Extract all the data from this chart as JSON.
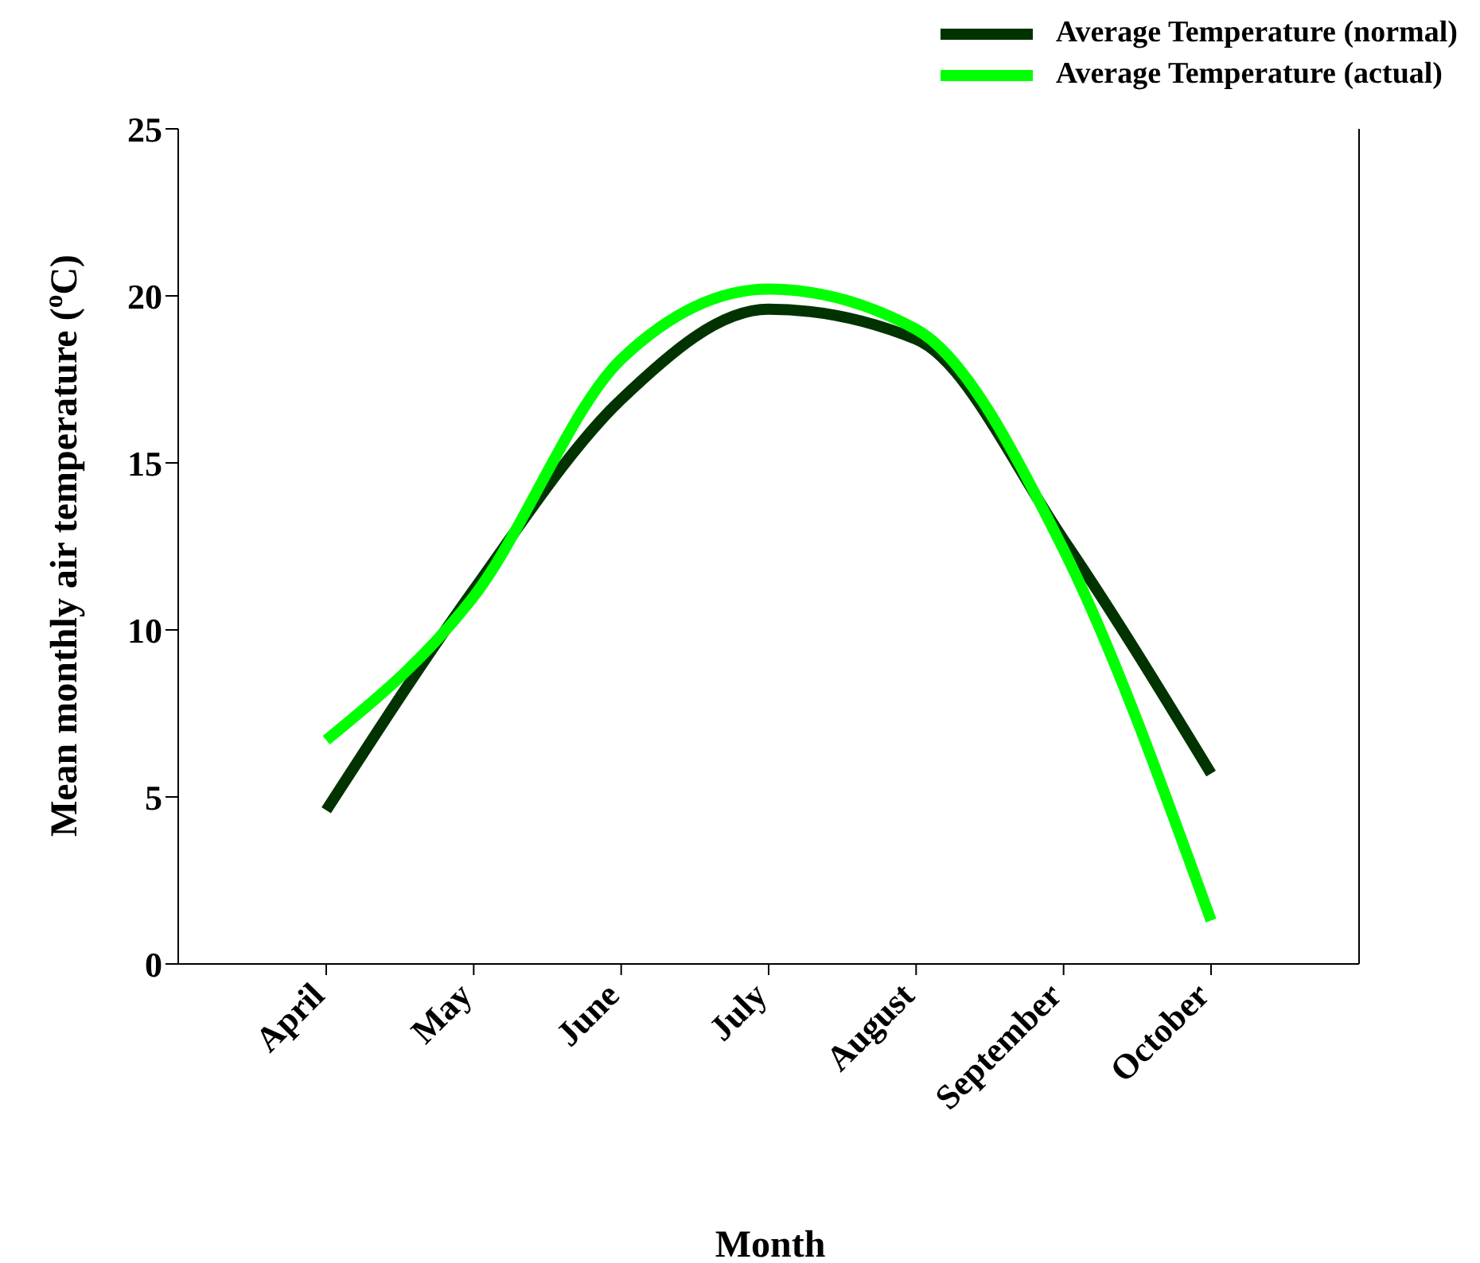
{
  "chart_data": {
    "type": "line",
    "xlabel": "Month",
    "ylabel": "Mean monthly air temperature ($^{o}$C)",
    "categories": [
      "April",
      "May",
      "June",
      "July",
      "August",
      "September",
      "October"
    ],
    "series": [
      {
        "name": "Average Temperature (normal)",
        "color": "#003300",
        "values": [
          4.6,
          11.2,
          16.9,
          19.6,
          18.7,
          12.7,
          5.7
        ]
      },
      {
        "name": "Average Temperature (actual)",
        "color": "#00ff00",
        "values": [
          6.7,
          11.0,
          18.1,
          20.2,
          19.0,
          12.4,
          1.3
        ]
      }
    ],
    "ylim": [
      0,
      25
    ],
    "yticks": [
      0,
      5,
      10,
      15,
      20,
      25
    ],
    "grid": false,
    "legend": "top right",
    "marker": "none",
    "line_style": "solid"
  }
}
